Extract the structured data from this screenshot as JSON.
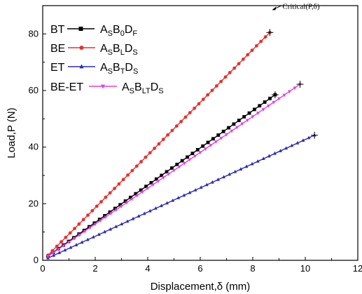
{
  "chart_data": {
    "type": "line",
    "xlabel": "Displacement,δ (mm)",
    "ylabel": "Load,P (N)",
    "xlim": [
      0,
      12
    ],
    "ylim": [
      0,
      90
    ],
    "xticks": [
      0,
      2,
      4,
      6,
      8,
      10,
      12
    ],
    "yticks": [
      0,
      20,
      40,
      60,
      80
    ],
    "grid": false,
    "legend_position": "top-left",
    "series": [
      {
        "name": "BT",
        "code": {
          "base": "A",
          "s1": "S",
          "mid": "B",
          "s2": "0",
          "end": "D",
          "s3": "F"
        },
        "color": "#000000",
        "marker": "square",
        "x_start": 0.2,
        "y_start": 1.5,
        "x_end": 8.85,
        "y_end": 58.5
      },
      {
        "name": "BE",
        "code": {
          "base": "A",
          "s1": "S",
          "mid": "B",
          "s2": "L",
          "end": "D",
          "s3": "S"
        },
        "color": "#e8302c",
        "marker": "circle",
        "x_start": 0.2,
        "y_start": 1.8,
        "x_end": 8.65,
        "y_end": 80.5
      },
      {
        "name": "ET",
        "code": {
          "base": "A",
          "s1": "S",
          "mid": "B",
          "s2": "T",
          "end": "D",
          "s3": "S"
        },
        "color": "#2b2bb5",
        "marker": "triangle-up",
        "x_start": 0.2,
        "y_start": 0.8,
        "x_end": 10.35,
        "y_end": 44.2
      },
      {
        "name": "BE-ET",
        "code": {
          "base": "A",
          "s1": "S",
          "mid": "B",
          "s2": "LT",
          "end": "D",
          "s3": "S"
        },
        "color": "#e040e0",
        "marker": "triangle-down",
        "x_start": 0.2,
        "y_start": 1.4,
        "x_end": 9.8,
        "y_end": 62.2
      }
    ],
    "annotations": [
      {
        "text": "Critical(P,δ)",
        "target_series": "BE",
        "x": 8.65,
        "y": 80.5
      }
    ]
  }
}
